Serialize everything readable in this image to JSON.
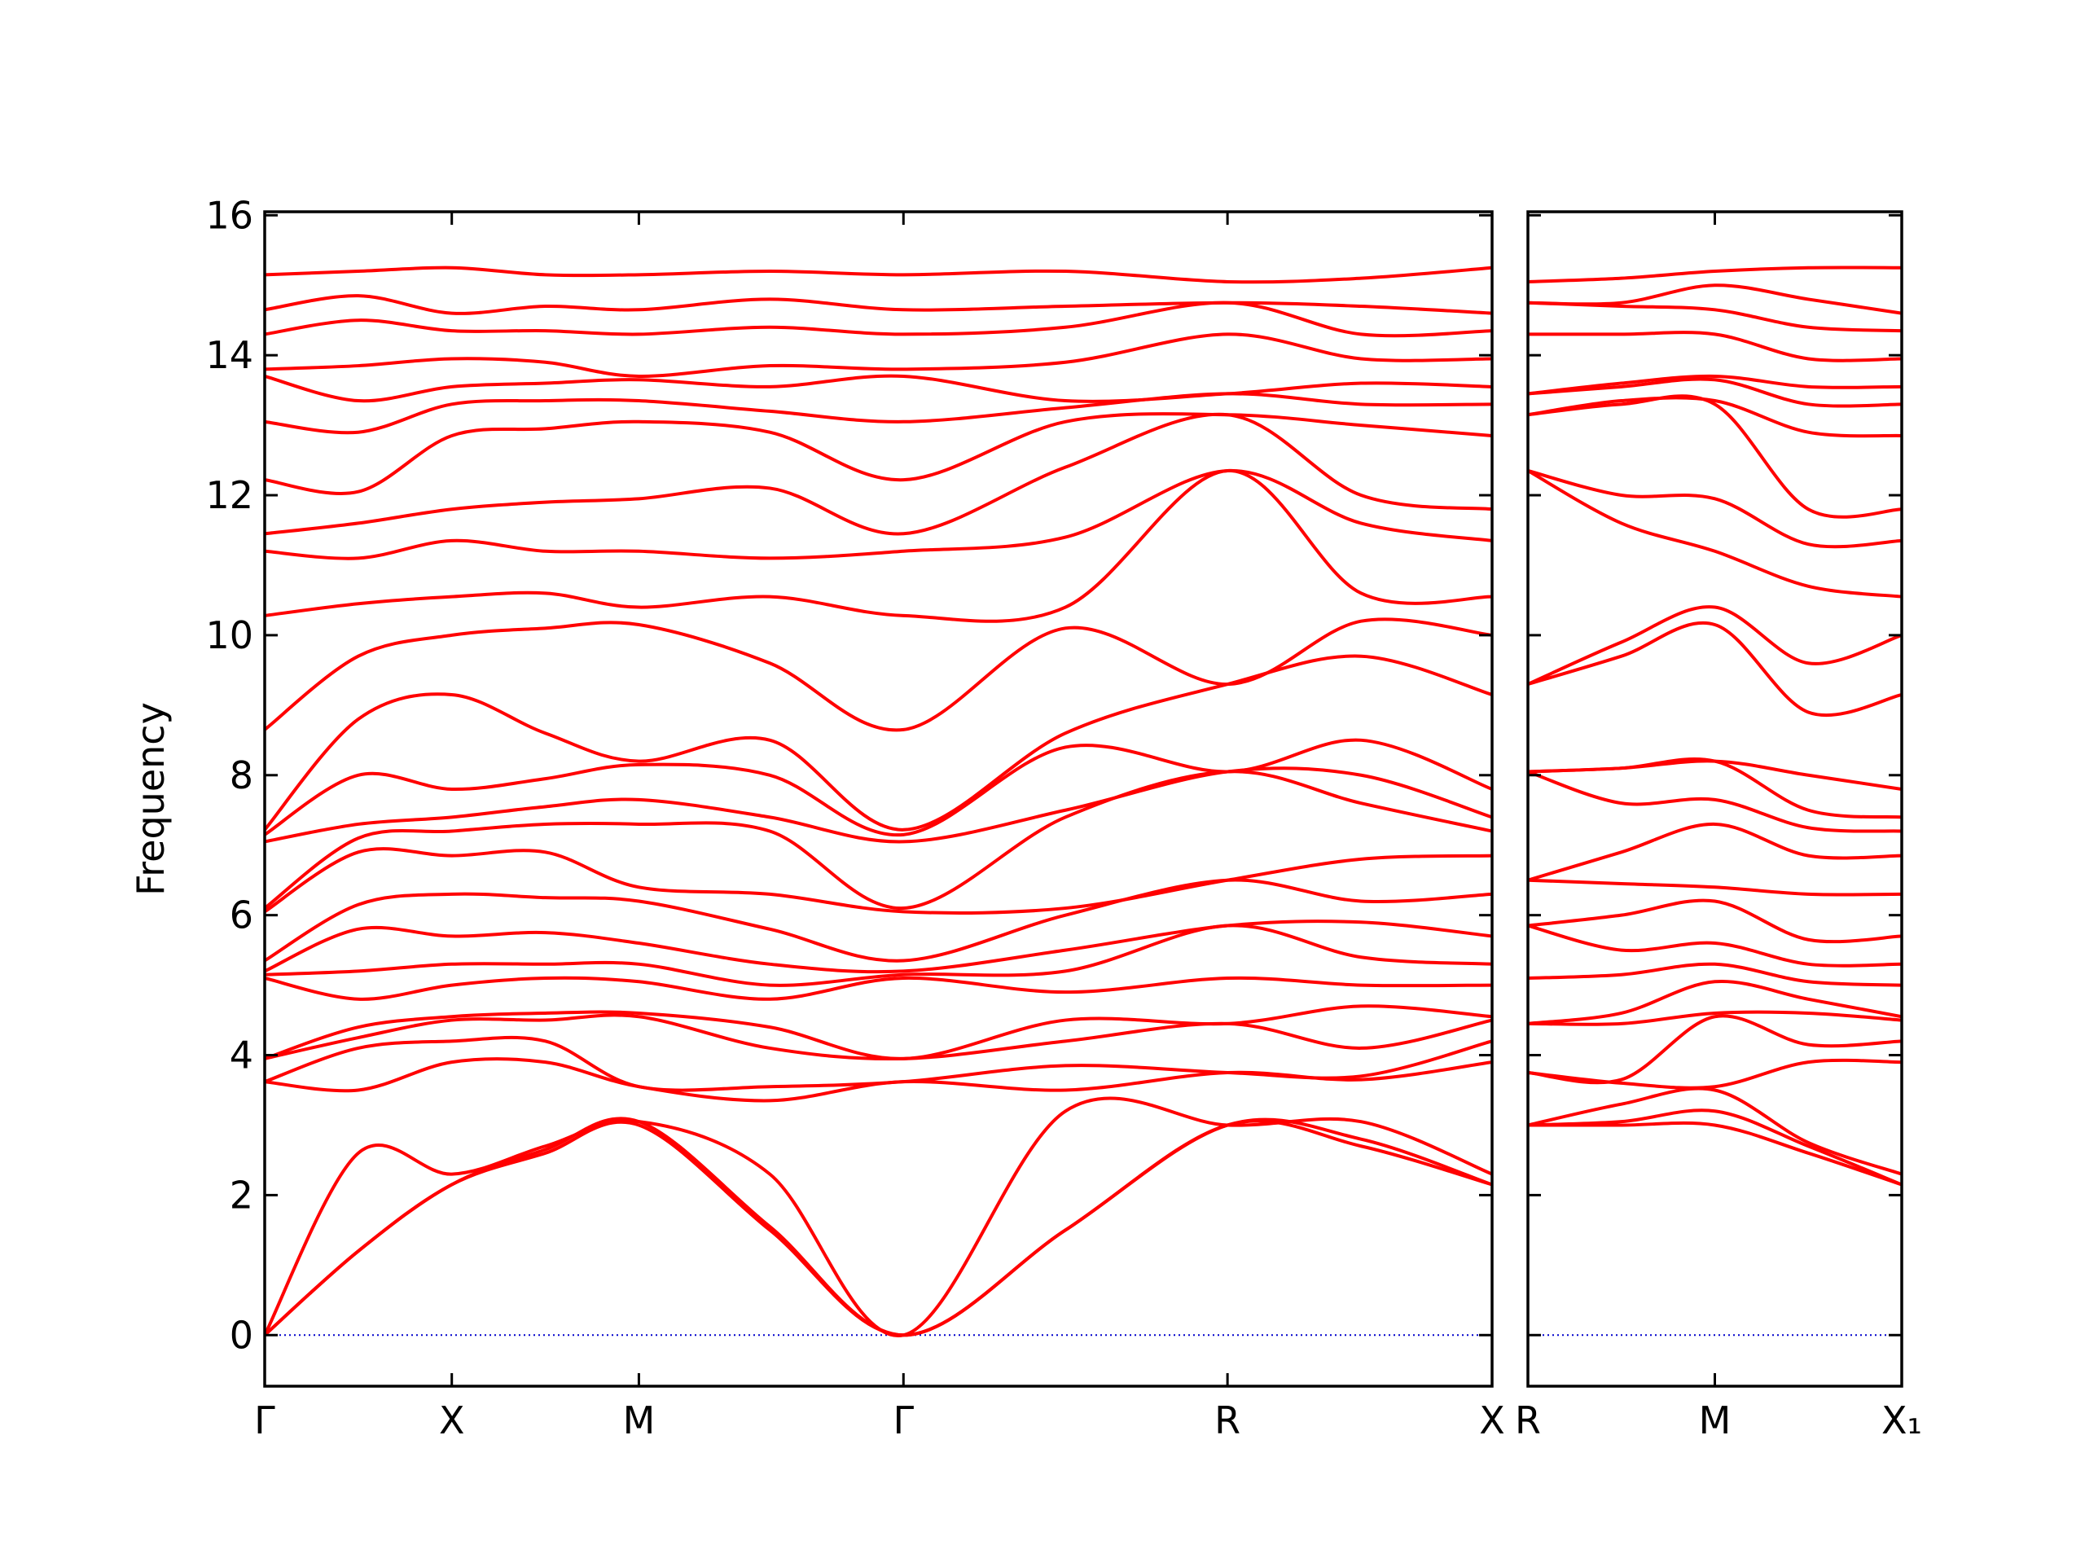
{
  "chart_data": [
    {
      "type": "line",
      "ylabel": "Frequency",
      "color": "#ff0000",
      "xlim": [
        0,
        3.2802
      ],
      "ylim": [
        -0.73,
        16.05
      ],
      "xticks": [
        {
          "value": 0,
          "label": "Γ"
        },
        {
          "value": 0.5,
          "label": "X"
        },
        {
          "value": 1.0,
          "label": "M"
        },
        {
          "value": 1.7071,
          "label": "Γ"
        },
        {
          "value": 2.5731,
          "label": "R"
        },
        {
          "value": 3.2802,
          "label": "X"
        }
      ],
      "yticks": [
        0,
        2,
        4,
        6,
        8,
        10,
        12,
        14,
        16
      ],
      "hline": {
        "y": 0,
        "color": "#0000cc",
        "dash": "dotted"
      },
      "x": [
        0,
        0.25,
        0.5,
        0.75,
        1.0,
        1.35,
        1.7071,
        2.14,
        2.5731,
        2.93,
        3.2802
      ],
      "series": [
        {
          "values": [
            0,
            1.2,
            2.15,
            2.6,
            3.0,
            1.5,
            0,
            1.5,
            3.0,
            2.7,
            2.15
          ]
        },
        {
          "values": [
            0,
            1.2,
            2.15,
            2.65,
            3.05,
            1.55,
            0,
            1.5,
            3.0,
            2.8,
            2.15
          ]
        },
        {
          "values": [
            0,
            2.6,
            2.3,
            2.7,
            3.05,
            2.3,
            0,
            3.2,
            3.0,
            3.05,
            2.3
          ]
        },
        {
          "values": [
            3.62,
            3.5,
            3.9,
            3.9,
            3.55,
            3.35,
            3.62,
            3.5,
            3.75,
            3.65,
            3.9
          ]
        },
        {
          "values": [
            3.62,
            4.1,
            4.2,
            4.2,
            3.55,
            3.55,
            3.62,
            3.85,
            3.75,
            3.7,
            4.2
          ]
        },
        {
          "values": [
            3.95,
            4.25,
            4.5,
            4.5,
            4.55,
            4.1,
            3.95,
            4.2,
            4.45,
            4.1,
            4.5
          ]
        },
        {
          "values": [
            3.95,
            4.4,
            4.55,
            4.6,
            4.6,
            4.4,
            3.95,
            4.5,
            4.45,
            4.7,
            4.55
          ]
        },
        {
          "values": [
            5.1,
            4.8,
            5.0,
            5.1,
            5.05,
            4.8,
            5.1,
            4.9,
            5.1,
            5.0,
            5.0
          ]
        },
        {
          "values": [
            5.15,
            5.2,
            5.3,
            5.3,
            5.3,
            5.0,
            5.15,
            5.2,
            5.85,
            5.4,
            5.3
          ]
        },
        {
          "values": [
            5.2,
            5.8,
            5.7,
            5.75,
            5.6,
            5.3,
            5.2,
            5.5,
            5.85,
            5.9,
            5.7
          ]
        },
        {
          "values": [
            5.35,
            6.15,
            6.3,
            6.25,
            6.2,
            5.8,
            5.35,
            6.0,
            6.5,
            6.2,
            6.3
          ]
        },
        {
          "values": [
            6.05,
            6.9,
            6.85,
            6.9,
            6.4,
            6.3,
            6.05,
            6.1,
            6.5,
            6.8,
            6.85
          ]
        },
        {
          "values": [
            6.1,
            7.1,
            7.2,
            7.3,
            7.3,
            7.2,
            6.1,
            7.4,
            8.05,
            7.6,
            7.2
          ]
        },
        {
          "values": [
            7.05,
            7.3,
            7.4,
            7.55,
            7.65,
            7.4,
            7.05,
            7.5,
            8.05,
            8.0,
            7.4
          ]
        },
        {
          "values": [
            7.15,
            8.0,
            7.8,
            7.95,
            8.15,
            8.0,
            7.15,
            8.4,
            8.05,
            8.5,
            7.8
          ]
        },
        {
          "values": [
            7.22,
            8.8,
            9.15,
            8.6,
            8.2,
            8.5,
            7.22,
            8.6,
            9.3,
            9.7,
            9.15
          ]
        },
        {
          "values": [
            8.65,
            9.7,
            10.0,
            10.1,
            10.15,
            9.6,
            8.65,
            10.1,
            9.3,
            10.2,
            10.0
          ]
        },
        {
          "values": [
            10.28,
            10.45,
            10.55,
            10.6,
            10.4,
            10.55,
            10.28,
            10.4,
            12.35,
            10.6,
            10.55
          ]
        },
        {
          "values": [
            11.2,
            11.1,
            11.35,
            11.2,
            11.2,
            11.1,
            11.2,
            11.4,
            12.35,
            11.6,
            11.35
          ]
        },
        {
          "values": [
            11.45,
            11.6,
            11.8,
            11.9,
            11.95,
            12.1,
            11.45,
            12.4,
            13.15,
            12.0,
            11.8
          ]
        },
        {
          "values": [
            12.22,
            12.05,
            12.85,
            12.95,
            13.05,
            12.9,
            12.22,
            13.05,
            13.15,
            13.0,
            12.85
          ]
        },
        {
          "values": [
            13.05,
            12.9,
            13.3,
            13.35,
            13.35,
            13.2,
            13.05,
            13.25,
            13.45,
            13.3,
            13.3
          ]
        },
        {
          "values": [
            13.7,
            13.35,
            13.55,
            13.6,
            13.65,
            13.55,
            13.7,
            13.35,
            13.45,
            13.6,
            13.55
          ]
        },
        {
          "values": [
            13.8,
            13.85,
            13.95,
            13.9,
            13.7,
            13.85,
            13.8,
            13.9,
            14.3,
            13.95,
            13.95
          ]
        },
        {
          "values": [
            14.3,
            14.5,
            14.35,
            14.35,
            14.3,
            14.4,
            14.3,
            14.4,
            14.75,
            14.3,
            14.35
          ]
        },
        {
          "values": [
            14.65,
            14.85,
            14.6,
            14.7,
            14.65,
            14.8,
            14.65,
            14.7,
            14.75,
            14.7,
            14.6
          ]
        },
        {
          "values": [
            15.15,
            15.2,
            15.25,
            15.15,
            15.15,
            15.2,
            15.15,
            15.2,
            15.05,
            15.1,
            15.25
          ]
        }
      ]
    },
    {
      "type": "line",
      "color": "#ff0000",
      "ytick_labels": false,
      "xlim": [
        0,
        1.0
      ],
      "ylim": [
        -0.73,
        16.05
      ],
      "xticks": [
        {
          "value": 0,
          "label": "R"
        },
        {
          "value": 0.5,
          "label": "M"
        },
        {
          "value": 1.0,
          "label": "X₁"
        }
      ],
      "yticks": [
        0,
        2,
        4,
        6,
        8,
        10,
        12,
        14,
        16
      ],
      "hline": {
        "y": 0,
        "color": "#0000cc",
        "dash": "dotted"
      },
      "x": [
        0,
        0.25,
        0.5,
        0.75,
        1.0
      ],
      "series": [
        {
          "values": [
            3.0,
            3.0,
            3.0,
            2.6,
            2.15
          ]
        },
        {
          "values": [
            3.0,
            3.05,
            3.2,
            2.7,
            2.15
          ]
        },
        {
          "values": [
            3.0,
            3.3,
            3.5,
            2.75,
            2.3
          ]
        },
        {
          "values": [
            3.75,
            3.6,
            3.55,
            3.9,
            3.9
          ]
        },
        {
          "values": [
            3.75,
            3.65,
            4.55,
            4.15,
            4.2
          ]
        },
        {
          "values": [
            4.45,
            4.45,
            4.6,
            4.6,
            4.5
          ]
        },
        {
          "values": [
            4.45,
            4.6,
            5.05,
            4.8,
            4.55
          ]
        },
        {
          "values": [
            5.1,
            5.15,
            5.3,
            5.05,
            5.0
          ]
        },
        {
          "values": [
            5.85,
            5.5,
            5.6,
            5.3,
            5.3
          ]
        },
        {
          "values": [
            5.85,
            6.0,
            6.2,
            5.65,
            5.7
          ]
        },
        {
          "values": [
            6.5,
            6.45,
            6.4,
            6.3,
            6.3
          ]
        },
        {
          "values": [
            6.5,
            6.9,
            7.3,
            6.85,
            6.85
          ]
        },
        {
          "values": [
            8.05,
            7.6,
            7.65,
            7.25,
            7.2
          ]
        },
        {
          "values": [
            8.05,
            8.1,
            8.2,
            7.5,
            7.4
          ]
        },
        {
          "values": [
            8.05,
            8.1,
            8.2,
            8.0,
            7.8
          ]
        },
        {
          "values": [
            9.3,
            9.7,
            10.15,
            8.9,
            9.15
          ]
        },
        {
          "values": [
            9.3,
            9.9,
            10.4,
            9.6,
            10.0
          ]
        },
        {
          "values": [
            12.35,
            11.6,
            11.2,
            10.7,
            10.55
          ]
        },
        {
          "values": [
            12.35,
            12.0,
            11.95,
            11.3,
            11.35
          ]
        },
        {
          "values": [
            13.15,
            13.3,
            13.3,
            11.8,
            11.8
          ]
        },
        {
          "values": [
            13.15,
            13.35,
            13.35,
            12.9,
            12.85
          ]
        },
        {
          "values": [
            13.45,
            13.55,
            13.65,
            13.3,
            13.3
          ]
        },
        {
          "values": [
            13.45,
            13.6,
            13.7,
            13.55,
            13.55
          ]
        },
        {
          "values": [
            14.3,
            14.3,
            14.3,
            13.95,
            13.95
          ]
        },
        {
          "values": [
            14.75,
            14.7,
            14.65,
            14.4,
            14.35
          ]
        },
        {
          "values": [
            14.75,
            14.75,
            15.0,
            14.8,
            14.6
          ]
        },
        {
          "values": [
            15.05,
            15.1,
            15.2,
            15.25,
            15.25
          ]
        }
      ]
    }
  ]
}
